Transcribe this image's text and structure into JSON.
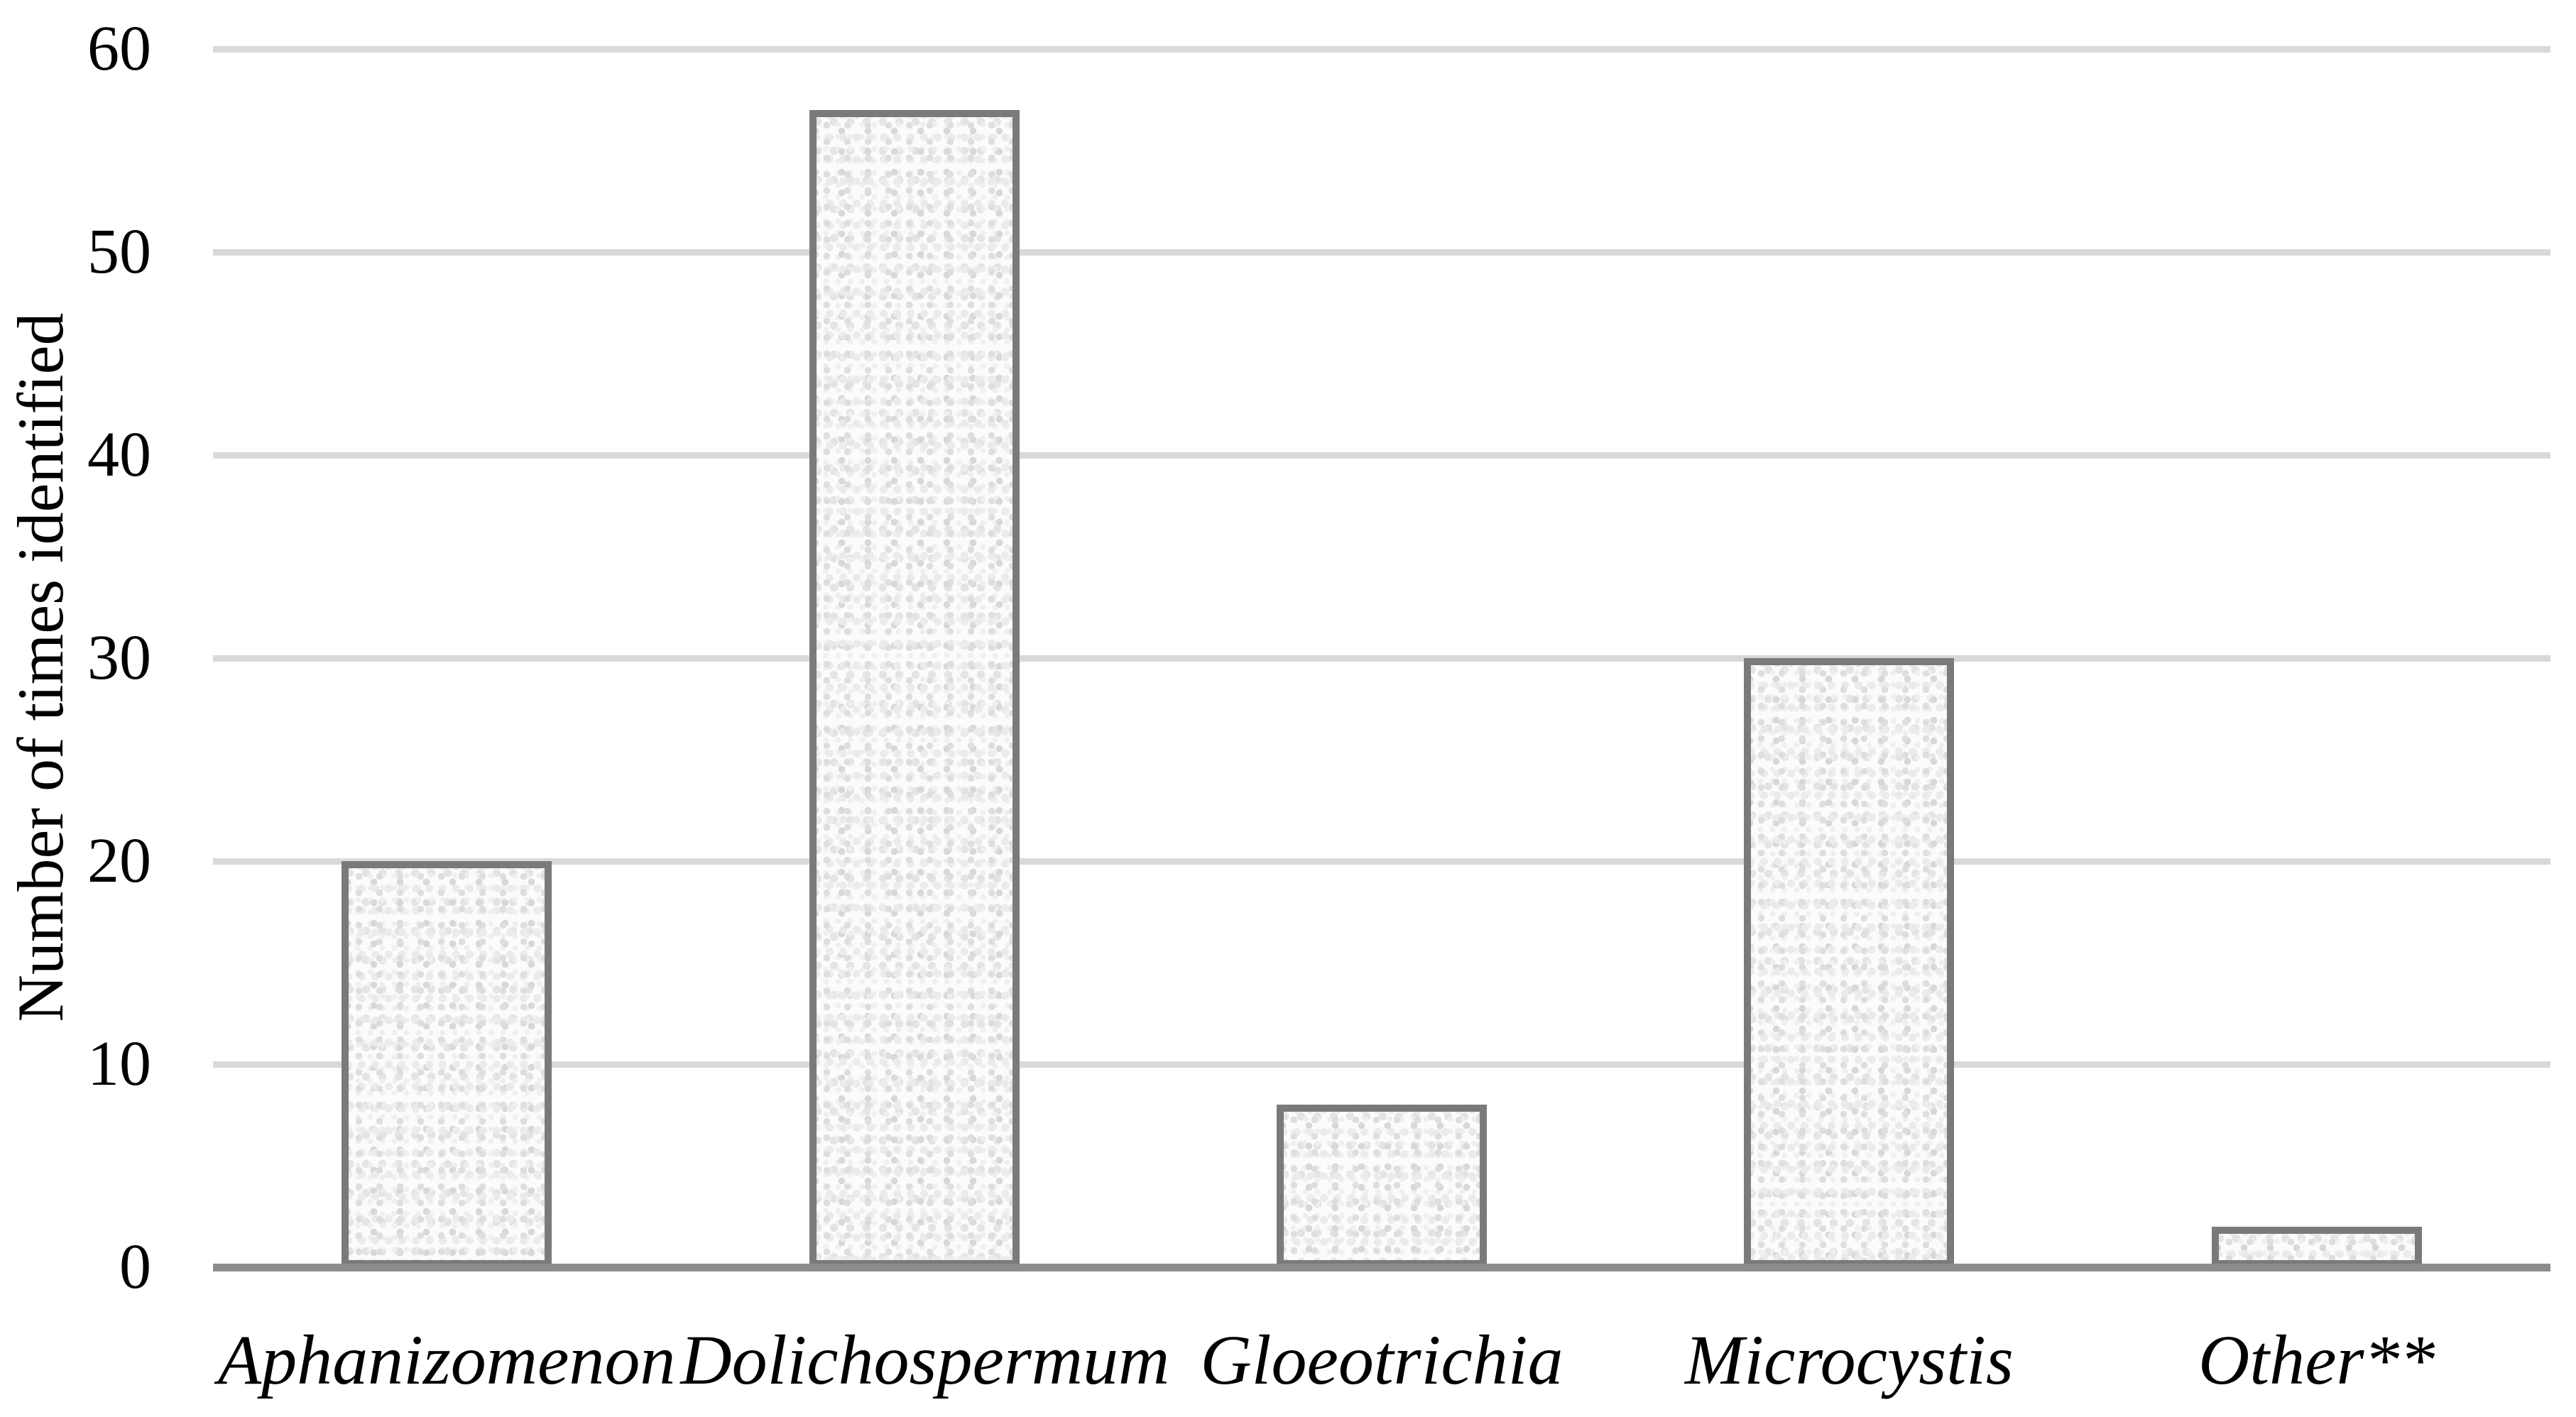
{
  "chart_data": {
    "type": "bar",
    "title": "",
    "xlabel": "",
    "ylabel": "Number of times identified",
    "categories": [
      "Aphanizomenon",
      "Dolichospermum",
      "Gloeotrichia",
      "Microcystis",
      "Other**"
    ],
    "values": [
      20,
      57,
      8,
      30,
      2
    ],
    "ylim": [
      0,
      60
    ],
    "ytick_values": [
      0,
      10,
      20,
      30,
      40,
      50,
      60
    ],
    "grid": "horizontal",
    "legend_position": "none",
    "colors": {
      "bar_fill": "#fbfbfb",
      "bar_speckle": "#dedede",
      "bar_border": "#7a7a7a",
      "gridline": "#d9d9d9",
      "axis_line": "#8c8c8c",
      "text": "#000000"
    }
  }
}
